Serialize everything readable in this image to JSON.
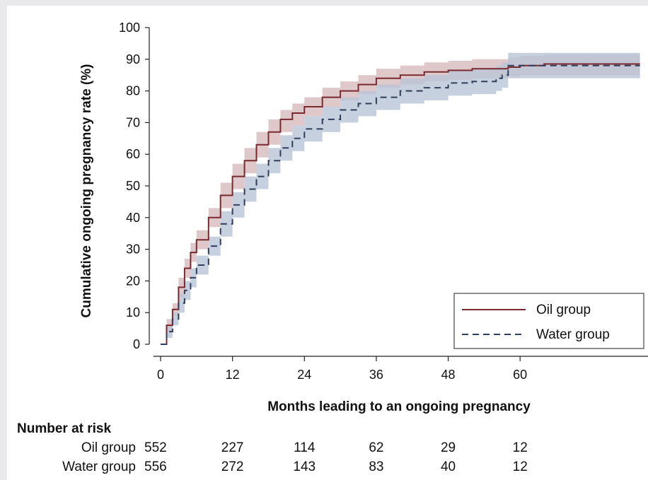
{
  "chart_data": {
    "type": "line",
    "xlabel": "Months leading to an ongoing pregnancy",
    "ylabel": "Cumulative ongoing pregnancy rate (%)",
    "xlim": [
      -2,
      81
    ],
    "ylim": [
      0,
      100
    ],
    "xticks": [
      0,
      12,
      24,
      36,
      48,
      60
    ],
    "yticks": [
      0,
      10,
      20,
      30,
      40,
      50,
      60,
      70,
      80,
      90,
      100
    ],
    "legend_position": "bottom-right",
    "grid": false,
    "series": [
      {
        "name": "Oil group",
        "color": "#7a2a2e",
        "band_color": "#d4b5b8",
        "line_style": "solid",
        "x": [
          0,
          1,
          2,
          3,
          4,
          5,
          6,
          8,
          10,
          12,
          14,
          16,
          18,
          20,
          22,
          24,
          27,
          30,
          33,
          36,
          40,
          44,
          48,
          52,
          56,
          58,
          60,
          64,
          68,
          72,
          80
        ],
        "y": [
          0,
          6,
          11,
          18,
          24,
          29,
          33,
          40,
          47,
          53,
          58,
          63,
          67,
          71,
          73,
          75,
          78,
          80,
          82,
          84,
          85,
          86,
          86.5,
          87,
          87,
          87.5,
          88,
          88.5,
          88.5,
          88.5,
          88.5
        ],
        "lower": [
          0,
          4,
          9,
          15,
          21,
          26,
          30,
          37,
          43,
          49,
          54,
          59,
          63,
          67,
          69,
          72,
          75,
          77,
          79,
          81,
          82,
          83,
          83.5,
          84,
          84,
          84.5,
          85,
          85,
          85,
          85,
          85
        ],
        "upper": [
          0,
          8,
          13,
          21,
          27,
          32,
          36,
          43,
          51,
          57,
          62,
          67,
          71,
          74,
          76,
          78,
          81,
          83,
          85,
          87,
          88,
          89,
          89.5,
          90,
          90,
          90.5,
          91,
          91.5,
          91.5,
          91.5,
          91.5
        ]
      },
      {
        "name": "Water group",
        "color": "#2f3e5c",
        "band_color": "#b9c4d6",
        "line_style": "dashed",
        "x": [
          0,
          1,
          2,
          3,
          4,
          5,
          6,
          8,
          10,
          12,
          14,
          16,
          18,
          20,
          22,
          24,
          27,
          30,
          33,
          36,
          40,
          44,
          48,
          52,
          56,
          57,
          58,
          60,
          64,
          68,
          72,
          80
        ],
        "y": [
          0,
          4,
          8,
          13,
          17,
          21,
          25,
          31,
          38,
          44,
          49,
          53,
          58,
          62,
          65,
          68,
          71,
          74,
          76,
          78,
          80,
          81,
          82.5,
          83,
          84,
          85,
          88,
          88,
          88,
          88,
          88,
          88
        ],
        "lower": [
          0,
          2,
          6,
          10,
          14,
          18,
          22,
          28,
          34,
          40,
          45,
          49,
          54,
          58,
          61,
          64,
          67,
          70,
          72,
          74,
          76,
          77,
          78.5,
          79,
          80,
          81,
          84,
          84,
          84,
          84,
          84,
          84
        ],
        "upper": [
          0,
          6,
          10,
          16,
          20,
          24,
          28,
          34,
          42,
          48,
          53,
          57,
          62,
          66,
          69,
          72,
          75,
          78,
          80,
          82,
          84,
          85,
          86.5,
          87,
          88,
          89,
          92,
          92,
          92,
          92,
          92,
          92
        ]
      }
    ]
  },
  "risk_table": {
    "title": "Number at risk",
    "rows": [
      {
        "label": "Oil group",
        "values": [
          "552",
          "227",
          "114",
          "62",
          "29",
          "12"
        ]
      },
      {
        "label": "Water group",
        "values": [
          "556",
          "272",
          "143",
          "83",
          "40",
          "12"
        ]
      }
    ]
  }
}
